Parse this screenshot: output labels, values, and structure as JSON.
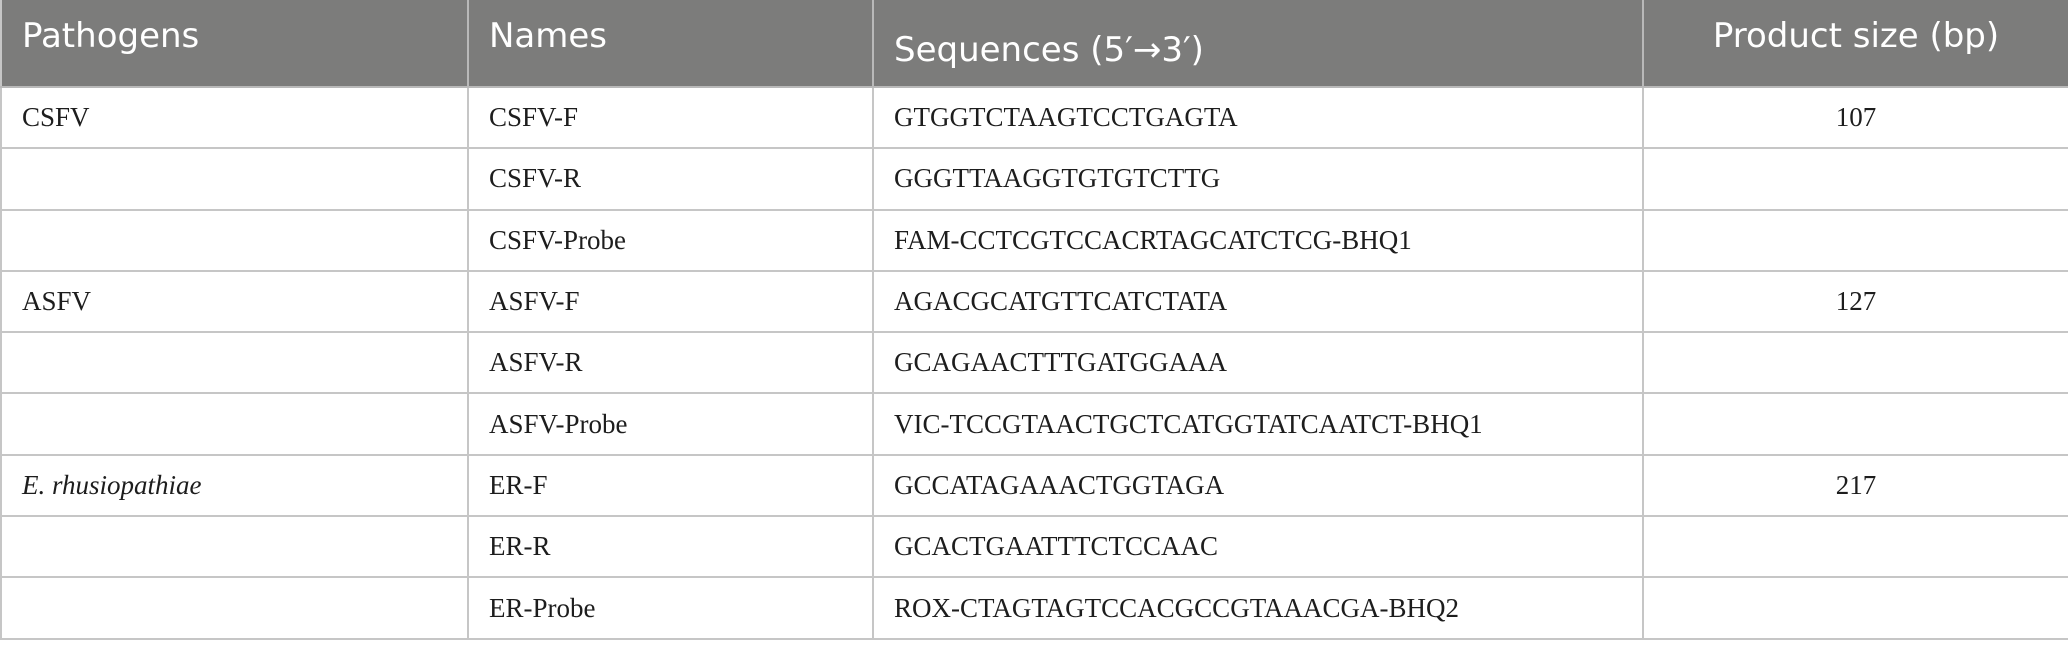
{
  "table": {
    "headers": [
      "Pathogens",
      "Names",
      "Sequences (5′→3′)",
      "Product size (bp)"
    ],
    "rows": [
      {
        "pathogen": "CSFV",
        "name": "CSFV-F",
        "sequence": "GTGGTCTAAGTCCTGAGTA",
        "size": "107"
      },
      {
        "pathogen": "",
        "name": "CSFV-R",
        "sequence": "GGGTTAAGGTGTGTCTTG",
        "size": ""
      },
      {
        "pathogen": "",
        "name": "CSFV-Probe",
        "sequence": "FAM-CCTCGTCCACRTAGCATCTCG-BHQ1",
        "size": ""
      },
      {
        "pathogen": "ASFV",
        "name": "ASFV-F",
        "sequence": "AGACGCATGTTCATCTATA",
        "size": "127"
      },
      {
        "pathogen": "",
        "name": "ASFV-R",
        "sequence": "GCAGAACTTTGATGGAAA",
        "size": ""
      },
      {
        "pathogen": "",
        "name": "ASFV-Probe",
        "sequence": "VIC-TCCGTAACTGCTCATGGTATCAATCT-BHQ1",
        "size": ""
      },
      {
        "pathogen": "E. rhusiopathiae",
        "name": "ER-F",
        "sequence": "GCCATAGAAACTGGTAGA",
        "size": "217"
      },
      {
        "pathogen": "",
        "name": "ER-R",
        "sequence": "GCACTGAATTTCTCCAAC",
        "size": ""
      },
      {
        "pathogen": "",
        "name": "ER-Probe",
        "sequence": "ROX-CTAGTAGTCCACGCCGTAAACGA-BHQ2",
        "size": ""
      }
    ]
  }
}
